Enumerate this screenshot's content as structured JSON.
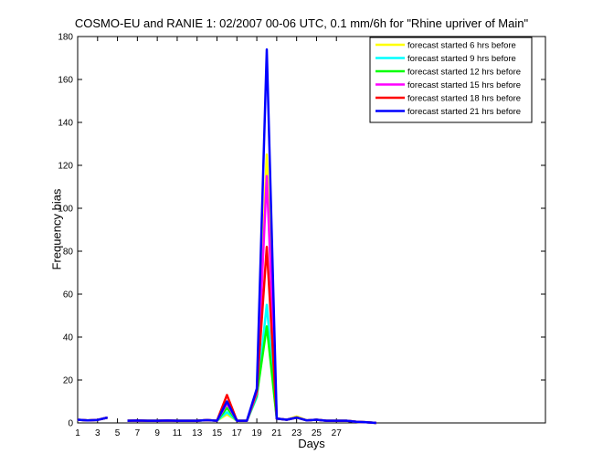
{
  "chart_data": {
    "type": "line",
    "title": "COSMO-EU and RANIE 1: 02/2007 00-06 UTC, 0.1 mm/6h for \"Rhine upriver of Main\"",
    "xlabel": "Days",
    "ylabel": "Frequency bias",
    "xlim": [
      1,
      48
    ],
    "ylim": [
      0,
      180
    ],
    "xticks": [
      1,
      3,
      5,
      7,
      9,
      11,
      13,
      15,
      17,
      19,
      21,
      23,
      25,
      27
    ],
    "yticks": [
      0,
      20,
      40,
      60,
      80,
      100,
      120,
      140,
      160,
      180
    ],
    "legend_position": "top-right",
    "x": [
      1,
      2,
      3,
      4,
      5,
      6,
      7,
      8,
      9,
      10,
      11,
      12,
      13,
      14,
      15,
      16,
      17,
      18,
      19,
      20,
      21,
      22,
      23,
      24,
      25,
      26,
      27,
      28,
      29,
      30,
      31
    ],
    "series": [
      {
        "name": "forecast started 6 hrs before",
        "color": "#ffff00",
        "values": [
          1.5,
          1.2,
          1.4,
          2.5,
          null,
          1.0,
          1.1,
          1.0,
          1.0,
          1.1,
          1.0,
          1.0,
          1.0,
          1.3,
          1.0,
          4.0,
          1.0,
          1.0,
          12.0,
          125.0,
          2.0,
          1.5,
          3.0,
          1.2,
          1.5,
          1.0,
          1.0,
          1.0,
          0.5,
          0.3,
          0.0
        ]
      },
      {
        "name": "forecast started 9 hrs before",
        "color": "#00ffff",
        "values": [
          1.5,
          1.2,
          1.4,
          2.5,
          null,
          1.0,
          1.1,
          1.0,
          1.0,
          1.1,
          1.0,
          1.0,
          1.0,
          1.3,
          1.0,
          5.0,
          1.0,
          1.0,
          12.0,
          55.0,
          2.0,
          1.5,
          2.5,
          1.2,
          1.5,
          1.0,
          1.0,
          1.0,
          0.5,
          0.3,
          0.0
        ]
      },
      {
        "name": "forecast started 12 hrs before",
        "color": "#00ff00",
        "values": [
          1.5,
          1.2,
          1.4,
          2.5,
          null,
          1.0,
          1.1,
          1.0,
          1.0,
          1.1,
          1.0,
          1.0,
          1.0,
          1.3,
          1.0,
          7.0,
          1.0,
          1.0,
          13.0,
          45.0,
          2.0,
          1.5,
          2.5,
          1.2,
          1.5,
          1.0,
          1.0,
          1.0,
          0.5,
          0.3,
          0.0
        ]
      },
      {
        "name": "forecast started 15 hrs before",
        "color": "#ff00ff",
        "values": [
          1.5,
          1.2,
          1.4,
          2.5,
          null,
          1.0,
          1.1,
          1.0,
          1.0,
          1.1,
          1.0,
          1.0,
          1.0,
          1.3,
          1.0,
          9.0,
          1.0,
          1.0,
          14.0,
          115.0,
          2.0,
          1.5,
          2.5,
          1.2,
          1.5,
          1.0,
          1.0,
          1.0,
          0.5,
          0.3,
          0.0
        ]
      },
      {
        "name": "forecast started 18 hrs before",
        "color": "#ff0000",
        "values": [
          1.5,
          1.2,
          1.4,
          2.5,
          null,
          1.0,
          1.1,
          1.0,
          1.0,
          1.1,
          1.0,
          1.0,
          1.0,
          1.3,
          1.0,
          13.0,
          1.0,
          1.0,
          15.0,
          82.0,
          2.0,
          1.5,
          2.5,
          1.2,
          1.5,
          1.0,
          1.0,
          1.0,
          0.5,
          0.3,
          0.0
        ]
      },
      {
        "name": "forecast started 21 hrs before",
        "color": "#0000ff",
        "values": [
          1.5,
          1.2,
          1.4,
          2.5,
          null,
          1.0,
          1.1,
          1.0,
          1.0,
          1.1,
          1.0,
          1.0,
          1.0,
          1.3,
          1.0,
          10.0,
          1.0,
          1.0,
          16.0,
          174.0,
          2.0,
          1.5,
          2.5,
          1.2,
          1.5,
          1.0,
          1.0,
          1.0,
          0.5,
          0.3,
          0.0
        ]
      }
    ]
  }
}
